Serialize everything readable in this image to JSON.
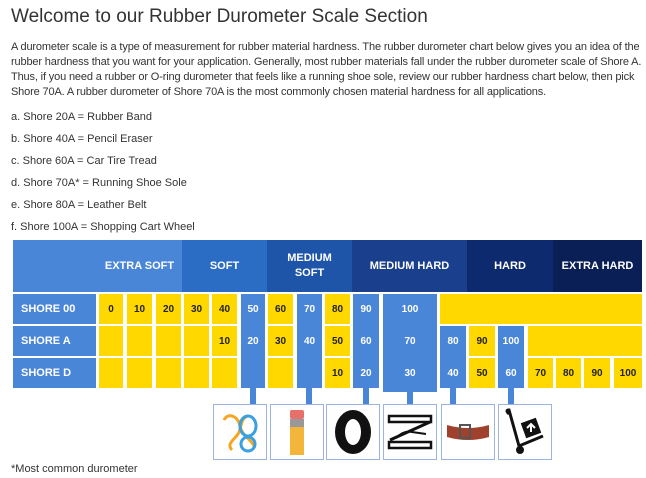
{
  "title": "Welcome to our Rubber Durometer Scale Section",
  "intro": "A durometer scale is a type of measurement for rubber material hardness. The rubber durometer chart below gives you an idea of the rubber hardness that you want for your application. Generally, most rubber materials fall under the rubber durometer scale of Shore A. Thus, if you need a rubber or O-ring durometer that feels like a running shoe sole, review our rubber hardness chart below, then pick Shore 70A. A rubber durometer of Shore 70A is the most commonly chosen material hardness for all applications.",
  "list": [
    "a. Shore 20A = Rubber Band",
    "b. Shore 40A = Pencil Eraser",
    "c. Shore 60A = Car Tire Tread",
    "d. Shore 70A* = Running Shoe Sole",
    "e. Shore 80A = Leather Belt",
    "f. Shore 100A = Shopping Cart Wheel"
  ],
  "chart": {
    "categories": [
      {
        "label": "EXTRA SOFT",
        "color": "#4a86d8"
      },
      {
        "label": "SOFT",
        "color": "#2b6cc4"
      },
      {
        "label": "MEDIUM SOFT",
        "color": "#1e55a8"
      },
      {
        "label": "MEDIUM HARD",
        "color": "#1a3f8c"
      },
      {
        "label": "HARD",
        "color": "#0e2a6e"
      },
      {
        "label": "EXTRA HARD",
        "color": "#0a1f55"
      }
    ],
    "rows": [
      {
        "label": "SHORE 00",
        "values": [
          "0",
          "10",
          "20",
          "30",
          "40",
          "50",
          "60",
          "70",
          "80",
          "90",
          "100",
          "",
          "",
          "",
          "",
          "",
          "",
          ""
        ]
      },
      {
        "label": "SHORE A",
        "values": [
          "",
          "",
          "",
          "",
          "10",
          "20",
          "30",
          "40",
          "50",
          "60",
          "70",
          "80",
          "90",
          "100",
          "",
          "",
          "",
          ""
        ]
      },
      {
        "label": "SHORE D",
        "values": [
          "",
          "",
          "",
          "",
          "",
          "",
          "",
          "",
          "10",
          "20",
          "30",
          "40",
          "50",
          "60",
          "70",
          "80",
          "90",
          "100"
        ]
      }
    ],
    "colors": {
      "yellow": "#ffd800",
      "blue": "#4a86d8"
    }
  },
  "icons": [
    "rubber-band-icon",
    "pencil-eraser-icon",
    "car-tire-icon",
    "running-shoe-icon",
    "leather-belt-icon",
    "shopping-cart-wheel-icon"
  ],
  "footnote": "*Most common durometer"
}
